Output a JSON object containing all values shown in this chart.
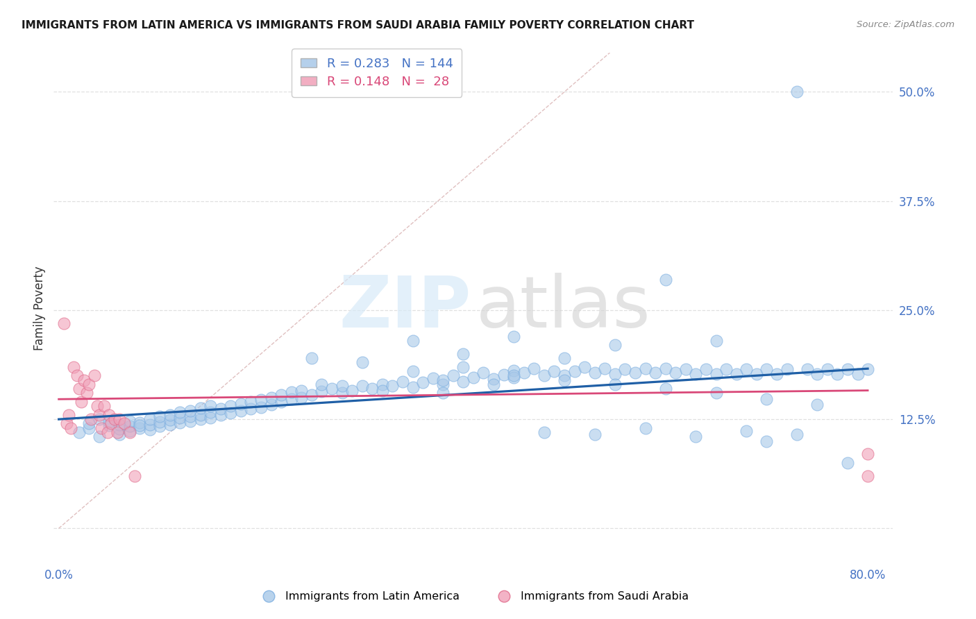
{
  "title": "IMMIGRANTS FROM LATIN AMERICA VS IMMIGRANTS FROM SAUDI ARABIA FAMILY POVERTY CORRELATION CHART",
  "source": "Source: ZipAtlas.com",
  "ylabel": "Family Poverty",
  "xlim": [
    -0.005,
    0.825
  ],
  "ylim": [
    -0.04,
    0.545
  ],
  "xtick_positions": [
    0.0,
    0.1,
    0.2,
    0.3,
    0.4,
    0.5,
    0.6,
    0.7,
    0.8
  ],
  "xticklabels": [
    "0.0%",
    "",
    "",
    "",
    "",
    "",
    "",
    "",
    "80.0%"
  ],
  "ytick_positions": [
    0.0,
    0.125,
    0.25,
    0.375,
    0.5
  ],
  "ytick_labels": [
    "",
    "12.5%",
    "25.0%",
    "37.5%",
    "50.0%"
  ],
  "blue_color": "#a8c8e8",
  "blue_edge_color": "#7aade0",
  "pink_color": "#f0a0b8",
  "pink_edge_color": "#e06888",
  "trend_blue_color": "#1f5fa6",
  "trend_pink_color": "#d94878",
  "diag_color": "#e0c0c0",
  "grid_color": "#e0e0e0",
  "title_color": "#1a1a1a",
  "source_color": "#888888",
  "tick_color": "#4472c4",
  "ylabel_color": "#333333",
  "legend_R_blue": "0.283",
  "legend_N_blue": "144",
  "legend_R_pink": "0.148",
  "legend_N_pink": "28",
  "legend_label_blue": "Immigrants from Latin America",
  "legend_label_pink": "Immigrants from Saudi Arabia",
  "blue_x": [
    0.02,
    0.03,
    0.03,
    0.04,
    0.04,
    0.05,
    0.05,
    0.06,
    0.06,
    0.06,
    0.07,
    0.07,
    0.07,
    0.08,
    0.08,
    0.08,
    0.09,
    0.09,
    0.09,
    0.1,
    0.1,
    0.1,
    0.11,
    0.11,
    0.11,
    0.12,
    0.12,
    0.12,
    0.13,
    0.13,
    0.13,
    0.14,
    0.14,
    0.14,
    0.15,
    0.15,
    0.15,
    0.16,
    0.16,
    0.17,
    0.17,
    0.18,
    0.18,
    0.19,
    0.19,
    0.2,
    0.2,
    0.21,
    0.21,
    0.22,
    0.22,
    0.23,
    0.23,
    0.24,
    0.24,
    0.25,
    0.26,
    0.26,
    0.27,
    0.28,
    0.28,
    0.29,
    0.3,
    0.31,
    0.32,
    0.32,
    0.33,
    0.34,
    0.35,
    0.36,
    0.37,
    0.38,
    0.38,
    0.39,
    0.4,
    0.41,
    0.42,
    0.43,
    0.44,
    0.45,
    0.45,
    0.46,
    0.47,
    0.48,
    0.49,
    0.5,
    0.51,
    0.52,
    0.53,
    0.54,
    0.55,
    0.56,
    0.57,
    0.58,
    0.59,
    0.6,
    0.61,
    0.62,
    0.63,
    0.64,
    0.65,
    0.66,
    0.67,
    0.68,
    0.69,
    0.7,
    0.71,
    0.72,
    0.73,
    0.74,
    0.75,
    0.76,
    0.77,
    0.78,
    0.79,
    0.8,
    0.35,
    0.4,
    0.45,
    0.5,
    0.55,
    0.6,
    0.65,
    0.7,
    0.38,
    0.43,
    0.48,
    0.53,
    0.58,
    0.63,
    0.68,
    0.73,
    0.78,
    0.25,
    0.3,
    0.35,
    0.4,
    0.45,
    0.5,
    0.55,
    0.6,
    0.65,
    0.7,
    0.75
  ],
  "blue_y": [
    0.11,
    0.115,
    0.12,
    0.125,
    0.105,
    0.118,
    0.122,
    0.108,
    0.114,
    0.119,
    0.112,
    0.117,
    0.123,
    0.115,
    0.121,
    0.118,
    0.113,
    0.119,
    0.125,
    0.117,
    0.122,
    0.128,
    0.119,
    0.124,
    0.13,
    0.121,
    0.127,
    0.133,
    0.123,
    0.128,
    0.135,
    0.125,
    0.13,
    0.138,
    0.127,
    0.133,
    0.14,
    0.13,
    0.137,
    0.132,
    0.14,
    0.135,
    0.143,
    0.137,
    0.145,
    0.139,
    0.147,
    0.142,
    0.15,
    0.145,
    0.153,
    0.148,
    0.156,
    0.15,
    0.158,
    0.153,
    0.157,
    0.165,
    0.16,
    0.155,
    0.163,
    0.158,
    0.163,
    0.16,
    0.165,
    0.158,
    0.163,
    0.168,
    0.162,
    0.167,
    0.172,
    0.165,
    0.17,
    0.175,
    0.168,
    0.173,
    0.178,
    0.171,
    0.176,
    0.181,
    0.173,
    0.178,
    0.183,
    0.175,
    0.18,
    0.175,
    0.18,
    0.185,
    0.178,
    0.183,
    0.177,
    0.182,
    0.178,
    0.183,
    0.178,
    0.183,
    0.178,
    0.182,
    0.177,
    0.182,
    0.177,
    0.182,
    0.177,
    0.182,
    0.177,
    0.182,
    0.177,
    0.182,
    0.5,
    0.182,
    0.177,
    0.182,
    0.177,
    0.182,
    0.177,
    0.182,
    0.215,
    0.2,
    0.22,
    0.195,
    0.21,
    0.285,
    0.215,
    0.1,
    0.155,
    0.165,
    0.11,
    0.108,
    0.115,
    0.105,
    0.112,
    0.108,
    0.075,
    0.195,
    0.19,
    0.18,
    0.185,
    0.175,
    0.17,
    0.165,
    0.16,
    0.155,
    0.148,
    0.142
  ],
  "pink_x": [
    0.005,
    0.008,
    0.01,
    0.012,
    0.015,
    0.018,
    0.02,
    0.022,
    0.025,
    0.028,
    0.03,
    0.032,
    0.035,
    0.038,
    0.04,
    0.042,
    0.045,
    0.048,
    0.05,
    0.052,
    0.055,
    0.058,
    0.06,
    0.065,
    0.07,
    0.075,
    0.8,
    0.8
  ],
  "pink_y": [
    0.235,
    0.12,
    0.13,
    0.115,
    0.185,
    0.175,
    0.16,
    0.145,
    0.17,
    0.155,
    0.165,
    0.125,
    0.175,
    0.14,
    0.13,
    0.115,
    0.14,
    0.11,
    0.13,
    0.12,
    0.125,
    0.11,
    0.125,
    0.12,
    0.11,
    0.06,
    0.06,
    0.085
  ]
}
